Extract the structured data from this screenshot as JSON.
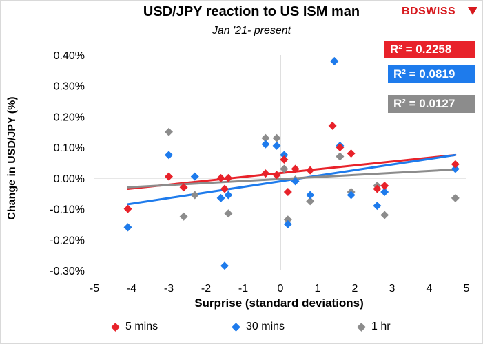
{
  "header": {
    "title": "USD/JPY reaction to US ISM man",
    "subtitle": "Jan '21- present",
    "logo_bd": "BD",
    "logo_swiss": "SWISS"
  },
  "r2_labels": {
    "five_mins": "R² = 0.2258",
    "thirty_mins": "R² = 0.0819",
    "one_hr": "R² = 0.0127"
  },
  "colors": {
    "five_mins": "#e8222a",
    "thirty_mins": "#1e7bec",
    "one_hr": "#8c8c8c",
    "brand": "#d7191e"
  },
  "chart_data": {
    "type": "scatter",
    "title": "USD/JPY reaction to US ISM man",
    "subtitle": "Jan '21- present",
    "xlabel": "Surprise (standard deviations)",
    "ylabel": "Change in USD/JPY  (%)",
    "xlim": [
      -5,
      5
    ],
    "ylim": [
      -0.3,
      0.4
    ],
    "x_ticks": [
      "-5",
      "-4",
      "-3",
      "-2",
      "-1",
      "0",
      "1",
      "2",
      "3",
      "4",
      "5"
    ],
    "y_ticks": [
      "0.40%",
      "0.30%",
      "0.20%",
      "0.10%",
      "0.00%",
      "-0.10%",
      "-0.20%",
      "-0.30%"
    ],
    "y_tick_values": [
      0.4,
      0.3,
      0.2,
      0.1,
      0.0,
      -0.1,
      -0.2,
      -0.3
    ],
    "x_tick_values": [
      -5,
      -4,
      -3,
      -2,
      -1,
      0,
      1,
      2,
      3,
      4,
      5
    ],
    "grid": false,
    "legend_position": "bottom",
    "series": [
      {
        "name": "5 mins",
        "color": "#e8222a",
        "x": [
          -4.1,
          -3.0,
          -2.6,
          -1.6,
          -1.5,
          -1.4,
          -0.4,
          -0.1,
          0.1,
          0.2,
          0.4,
          0.8,
          1.4,
          1.6,
          1.9,
          2.6,
          2.8,
          4.7
        ],
        "y": [
          -0.1,
          0.005,
          -0.03,
          0.0,
          -0.035,
          0.0,
          0.015,
          0.01,
          0.06,
          -0.045,
          0.03,
          0.025,
          0.17,
          0.1,
          0.08,
          -0.035,
          -0.025,
          0.045
        ],
        "trend": {
          "x": [
            -4.1,
            4.7
          ],
          "y": [
            -0.035,
            0.075
          ],
          "r2": "R² = 0.2258"
        }
      },
      {
        "name": "30 mins",
        "color": "#1e7bec",
        "x": [
          -4.1,
          -3.0,
          -2.3,
          -1.6,
          -1.5,
          -1.4,
          -0.4,
          -0.1,
          0.1,
          0.2,
          0.4,
          0.8,
          1.45,
          1.6,
          1.9,
          2.6,
          2.8,
          4.7
        ],
        "y": [
          -0.16,
          0.075,
          0.005,
          -0.065,
          -0.285,
          -0.055,
          0.11,
          0.105,
          0.075,
          -0.15,
          -0.01,
          -0.055,
          0.38,
          0.105,
          -0.055,
          -0.09,
          -0.045,
          0.03
        ],
        "trend": {
          "x": [
            -4.1,
            4.7
          ],
          "y": [
            -0.085,
            0.075
          ],
          "r2": "R² = 0.0819"
        }
      },
      {
        "name": "1 hr",
        "color": "#8c8c8c",
        "x": [
          -4.1,
          -3.0,
          -2.6,
          -2.3,
          -1.4,
          -0.4,
          -0.1,
          0.1,
          0.2,
          0.4,
          0.8,
          1.45,
          1.6,
          1.9,
          2.6,
          2.8,
          4.7
        ],
        "y": [
          -0.16,
          0.15,
          -0.125,
          -0.055,
          -0.115,
          0.13,
          0.13,
          0.03,
          -0.135,
          -0.005,
          -0.075,
          0.38,
          0.07,
          -0.045,
          -0.025,
          -0.12,
          -0.065
        ],
        "trend": {
          "x": [
            -4.1,
            4.7
          ],
          "y": [
            -0.03,
            0.028
          ],
          "r2": "R² = 0.0127"
        }
      }
    ]
  },
  "legend": {
    "five_mins": "5 mins",
    "thirty_mins": "30 mins",
    "one_hr": "1 hr"
  }
}
